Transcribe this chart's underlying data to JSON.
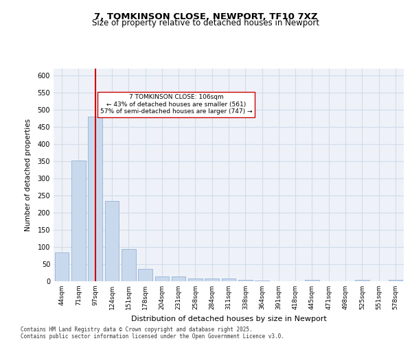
{
  "title1": "7, TOMKINSON CLOSE, NEWPORT, TF10 7XZ",
  "title2": "Size of property relative to detached houses in Newport",
  "xlabel": "Distribution of detached houses by size in Newport",
  "ylabel": "Number of detached properties",
  "categories": [
    "44sqm",
    "71sqm",
    "97sqm",
    "124sqm",
    "151sqm",
    "178sqm",
    "204sqm",
    "231sqm",
    "258sqm",
    "284sqm",
    "311sqm",
    "338sqm",
    "364sqm",
    "391sqm",
    "418sqm",
    "445sqm",
    "471sqm",
    "498sqm",
    "525sqm",
    "551sqm",
    "578sqm"
  ],
  "values": [
    84,
    352,
    480,
    235,
    95,
    36,
    15,
    15,
    8,
    8,
    8,
    5,
    2,
    0,
    0,
    5,
    0,
    0,
    5,
    0,
    5
  ],
  "bar_color": "#c9d9ed",
  "bar_edge_color": "#a0b8d8",
  "grid_color": "#d0dce8",
  "background_color": "#eef2f8",
  "vline_x": 2,
  "vline_color": "#cc0000",
  "annotation_text": "7 TOMKINSON CLOSE: 106sqm\n← 43% of detached houses are smaller (561)\n57% of semi-detached houses are larger (747) →",
  "annotation_box_color": "#ffffff",
  "annotation_box_edge": "#cc0000",
  "footer": "Contains HM Land Registry data © Crown copyright and database right 2025.\nContains public sector information licensed under the Open Government Licence v3.0.",
  "ylim": [
    0,
    620
  ],
  "yticks": [
    0,
    50,
    100,
    150,
    200,
    250,
    300,
    350,
    400,
    450,
    500,
    550,
    600
  ]
}
